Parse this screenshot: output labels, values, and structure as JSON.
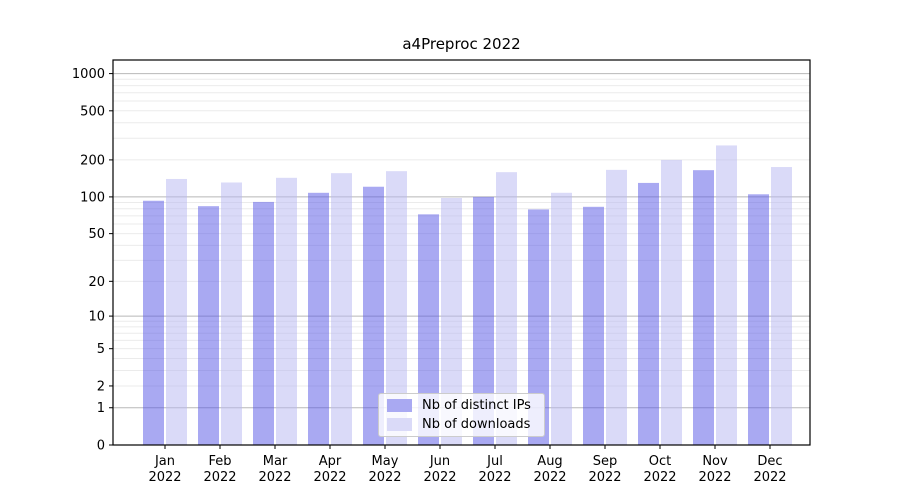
{
  "chart_data": {
    "type": "bar",
    "title": "a4Preproc 2022",
    "scale": "log10(1+y)",
    "ylim": [
      0,
      1288
    ],
    "grid": true,
    "legend_position": "lower center",
    "categories": [
      "Jan",
      "Feb",
      "Mar",
      "Apr",
      "May",
      "Jun",
      "Jul",
      "Aug",
      "Sep",
      "Oct",
      "Nov",
      "Dec"
    ],
    "x_year": "2022",
    "y_ticks": [
      0,
      1,
      2,
      5,
      10,
      20,
      50,
      100,
      200,
      500,
      1000
    ],
    "grid_major": [
      1,
      10,
      100,
      1000
    ],
    "grid_minor": [
      2,
      3,
      4,
      5,
      6,
      7,
      8,
      9,
      20,
      30,
      40,
      50,
      60,
      70,
      80,
      90,
      200,
      300,
      400,
      500,
      600,
      700,
      800,
      900
    ],
    "series": [
      {
        "name": "Nb of distinct IPs",
        "color": "#a9a9f2",
        "fill": "#5353e6",
        "opacity": 0.5,
        "values": [
          93,
          84,
          91,
          108,
          121,
          72,
          100,
          79,
          83,
          130,
          165,
          105
        ]
      },
      {
        "name": "Nb of downloads",
        "color": "#dadaf8",
        "fill": "#b5b5f1",
        "opacity": 0.5,
        "values": [
          140,
          131,
          143,
          156,
          162,
          98,
          159,
          108,
          166,
          200,
          262,
          175
        ]
      }
    ],
    "colors": {
      "grid_major": "#b8b8b8",
      "grid_minor": "#ebebeb",
      "spine": "#000000",
      "background": "#ffffff"
    }
  }
}
